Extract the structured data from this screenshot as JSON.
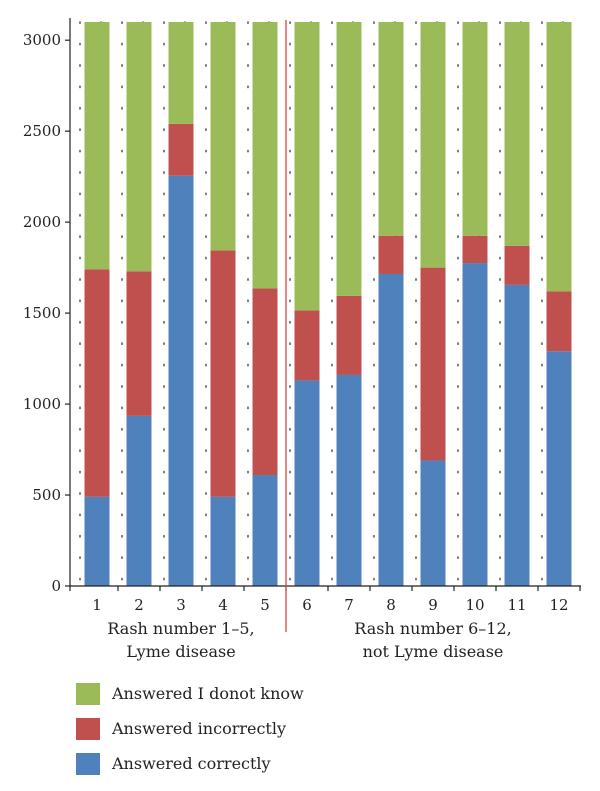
{
  "chart_data": {
    "type": "bar",
    "stacked": true,
    "categories": [
      "1",
      "2",
      "3",
      "4",
      "5",
      "6",
      "7",
      "8",
      "9",
      "10",
      "11",
      "12"
    ],
    "series": [
      {
        "name": "Answered correctly",
        "color": "#4f81bd",
        "values": [
          490,
          935,
          2255,
          490,
          610,
          1130,
          1160,
          1715,
          690,
          1775,
          1655,
          1290
        ]
      },
      {
        "name": "Answered incorrectly",
        "color": "#c0504d",
        "values": [
          1250,
          795,
          285,
          1355,
          1025,
          385,
          435,
          210,
          1060,
          150,
          215,
          330
        ]
      },
      {
        "name": "Answered I donot know",
        "color": "#9bbb59",
        "values": [
          1360,
          1370,
          560,
          1255,
          1465,
          1585,
          1505,
          1175,
          1350,
          1175,
          1230,
          1480
        ]
      }
    ],
    "ylim": [
      0,
      3100
    ],
    "yticks": [
      0,
      500,
      1000,
      1500,
      2000,
      2500,
      3000
    ],
    "grid": "dotted",
    "divider_after_category": "5",
    "group_labels": [
      {
        "lines": [
          "Rash number 1–5,",
          "Lyme disease"
        ]
      },
      {
        "lines": [
          "Rash number 6–12,",
          "not Lyme disease"
        ]
      }
    ],
    "legend": [
      "Answered I donot know",
      "Answered incorrectly",
      "Answered correctly"
    ],
    "divider_color": "#d9534f",
    "axis_color": "#222222"
  }
}
